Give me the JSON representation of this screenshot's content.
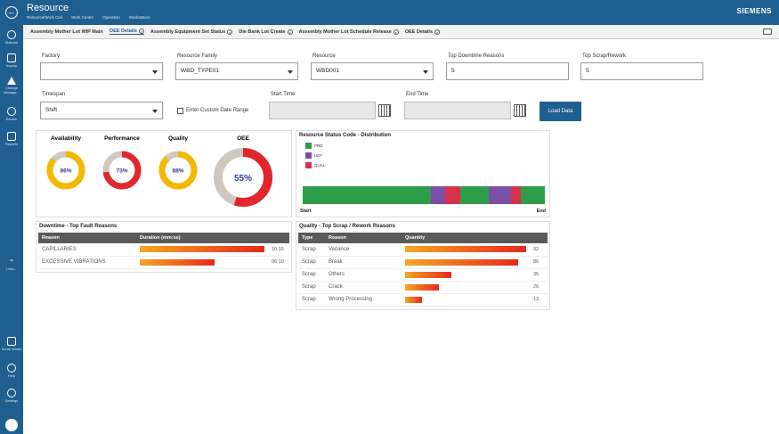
{
  "header": {
    "title": "Resource",
    "breadcrumbs": [
      "Resource/Work Cell",
      "Work Center",
      "Operation",
      "Workstation"
    ],
    "brand": "SIEMENS"
  },
  "sidebar": {
    "items": [
      {
        "label": "Material",
        "icon": "material-icon"
      },
      {
        "label": "Inquiry",
        "icon": "inquiry-icon"
      },
      {
        "label": "Change Manage...",
        "icon": "change-manage-icon"
      },
      {
        "label": "Search",
        "icon": "search-icon"
      },
      {
        "label": "Reports",
        "icon": "reports-icon"
      },
      {
        "label": "Less...",
        "icon": "chevron-up-icon"
      },
      {
        "label": "Scrap Works",
        "icon": "scrap-works-icon"
      },
      {
        "label": "Help",
        "icon": "help-icon"
      },
      {
        "label": "Settings",
        "icon": "settings-icon"
      }
    ]
  },
  "tabs": [
    {
      "label": "Assembly Mother Lot WIP Main",
      "closable": false,
      "active": false
    },
    {
      "label": "OEE Details",
      "closable": true,
      "active": true
    },
    {
      "label": "Assembly Equipment Set Status",
      "closable": true,
      "active": false
    },
    {
      "label": "Die Bank Lot Create",
      "closable": true,
      "active": false
    },
    {
      "label": "Assembly Mother Lot Schedule Release",
      "closable": true,
      "active": false
    },
    {
      "label": "OEE Details",
      "closable": true,
      "active": false
    }
  ],
  "filters": {
    "factory": {
      "label": "Factory",
      "value": ""
    },
    "resource_family": {
      "label": "Resource Family",
      "value": "WBD_TYPE01"
    },
    "resource": {
      "label": "Resource",
      "value": "WBD001"
    },
    "top_downtime": {
      "label": "Top Downtime Reasons",
      "value": "5"
    },
    "top_scrap": {
      "label": "Top Scrap/Rework",
      "value": "5"
    },
    "timespan": {
      "label": "Timespan",
      "value": "Shift"
    },
    "custom_date": {
      "label": "Enter Custom Date Range",
      "checked": false
    },
    "start_time": {
      "label": "Start Time",
      "value": ""
    },
    "end_time": {
      "label": "End Time",
      "value": ""
    },
    "load_button": "Load Data"
  },
  "gauges": [
    {
      "title": "Availability",
      "value": 86,
      "label": "86%",
      "color": "#f5b800"
    },
    {
      "title": "Performance",
      "value": 73,
      "label": "73%",
      "color": "#e1262d"
    },
    {
      "title": "Quality",
      "value": 88,
      "label": "88%",
      "color": "#f5b800"
    },
    {
      "title": "OEE",
      "value": 55,
      "label": "55%",
      "color": "#e1262d"
    }
  ],
  "status_chart": {
    "title": "Resource Status Code - Distribution",
    "legend": [
      {
        "name": "PRD",
        "color": "#2e9e4a"
      },
      {
        "name": "UDT",
        "color": "#7b4fa6"
      },
      {
        "name": "QUAL",
        "color": "#d6334a"
      }
    ],
    "segments": [
      {
        "code": "PRD",
        "share": 0.53
      },
      {
        "code": "UDT",
        "share": 0.06
      },
      {
        "code": "QUAL",
        "share": 0.06
      },
      {
        "code": "PRD",
        "share": 0.12
      },
      {
        "code": "UDT",
        "share": 0.09
      },
      {
        "code": "QUAL",
        "share": 0.04
      },
      {
        "code": "PRD",
        "share": 0.1
      }
    ],
    "start_label": "Start",
    "end_label": "End"
  },
  "downtime": {
    "title": "Downtime - Top Fault Reasons",
    "columns": [
      "Reason",
      "Duration (mm:ss)"
    ],
    "rows": [
      {
        "reason": "CAPILLARIES",
        "duration": "10:16",
        "seconds": 616
      },
      {
        "reason": "EXCESSIVE VIBRATIONS",
        "duration": "06:10",
        "seconds": 370
      }
    ]
  },
  "quality": {
    "title": "Quality - Top Scrap / Rework Reasons",
    "columns": [
      "Type",
      "Reason",
      "Quantity"
    ],
    "rows": [
      {
        "type": "Scrap",
        "reason": "Variance",
        "qty": "92",
        "value": 92
      },
      {
        "type": "Scrap",
        "reason": "Break",
        "qty": "86",
        "value": 86
      },
      {
        "type": "Scrap",
        "reason": "Others",
        "qty": "35",
        "value": 35
      },
      {
        "type": "Scrap",
        "reason": "Crack",
        "qty": "26",
        "value": 26
      },
      {
        "type": "Scrap",
        "reason": "Wrong Processing",
        "qty": "13",
        "value": 13
      }
    ]
  }
}
